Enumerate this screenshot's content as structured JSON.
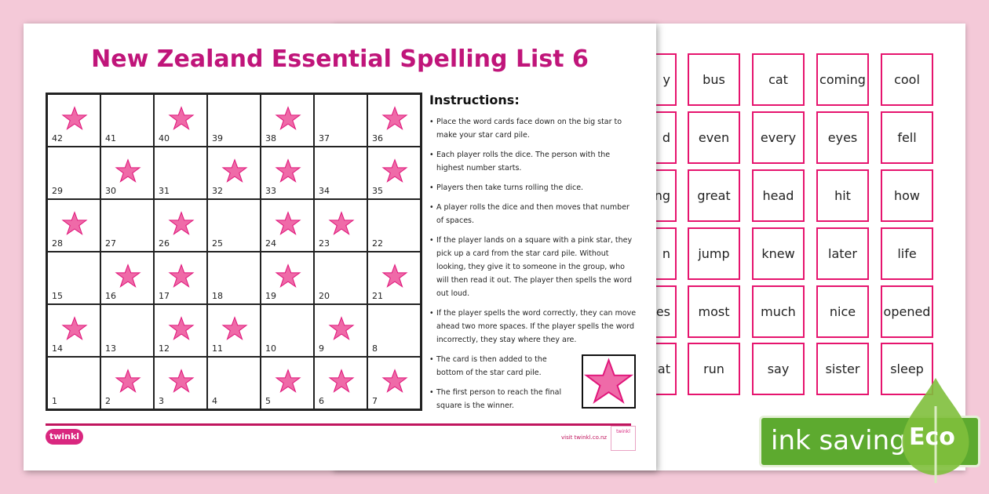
{
  "title": "New Zealand Essential Spelling List 6",
  "board": {
    "rows": [
      [
        42,
        41,
        40,
        39,
        38,
        37,
        36
      ],
      [
        29,
        30,
        31,
        32,
        33,
        34,
        35
      ],
      [
        28,
        27,
        26,
        25,
        24,
        23,
        22
      ],
      [
        15,
        16,
        17,
        18,
        19,
        20,
        21
      ],
      [
        14,
        13,
        12,
        11,
        10,
        9,
        8
      ],
      [
        1,
        2,
        3,
        4,
        5,
        6,
        7
      ]
    ],
    "stars": [
      42,
      40,
      38,
      36,
      30,
      32,
      33,
      35,
      28,
      26,
      24,
      23,
      16,
      17,
      19,
      21,
      14,
      12,
      11,
      9,
      2,
      3,
      5,
      6,
      7
    ],
    "star_color": "#ef6aa8"
  },
  "instructions": {
    "heading": "Instructions:",
    "items": [
      "Place the word cards face down on the big star to make your star card pile.",
      "Each player rolls the dice. The person with the highest number starts.",
      "Players then take turns rolling the dice.",
      "A player rolls the dice and then moves that number of spaces.",
      "If the player lands on a square with a pink star, they pick up a card from the star card pile. Without looking, they give it to someone in the group, who will then read it out. The player then spells the word out loud.",
      "If the player spells the word correctly, they can move ahead two more spaces. If the player spells the word incorrectly, they stay where they are.",
      "The card is then added to the bottom of the star card pile.",
      "The first person to reach the final square is the winner."
    ]
  },
  "footer": {
    "logo": "twinkl",
    "visit": "visit twinkl.co.nz",
    "badge": "twinkl"
  },
  "word_cards": [
    [
      "y",
      "bus",
      "cat",
      "coming",
      "cool"
    ],
    [
      "d",
      "even",
      "every",
      "eyes",
      "fell"
    ],
    [
      "ng",
      "great",
      "head",
      "hit",
      "how"
    ],
    [
      "n",
      "jump",
      "knew",
      "later",
      "life"
    ],
    [
      "tes",
      "most",
      "much",
      "nice",
      "opened"
    ],
    [
      "at",
      "run",
      "say",
      "sister",
      "sleep"
    ]
  ],
  "eco_badge": {
    "label": "ink saving",
    "tag": "Eco",
    "color": "#5daa2f"
  },
  "accent": "#c0157a"
}
